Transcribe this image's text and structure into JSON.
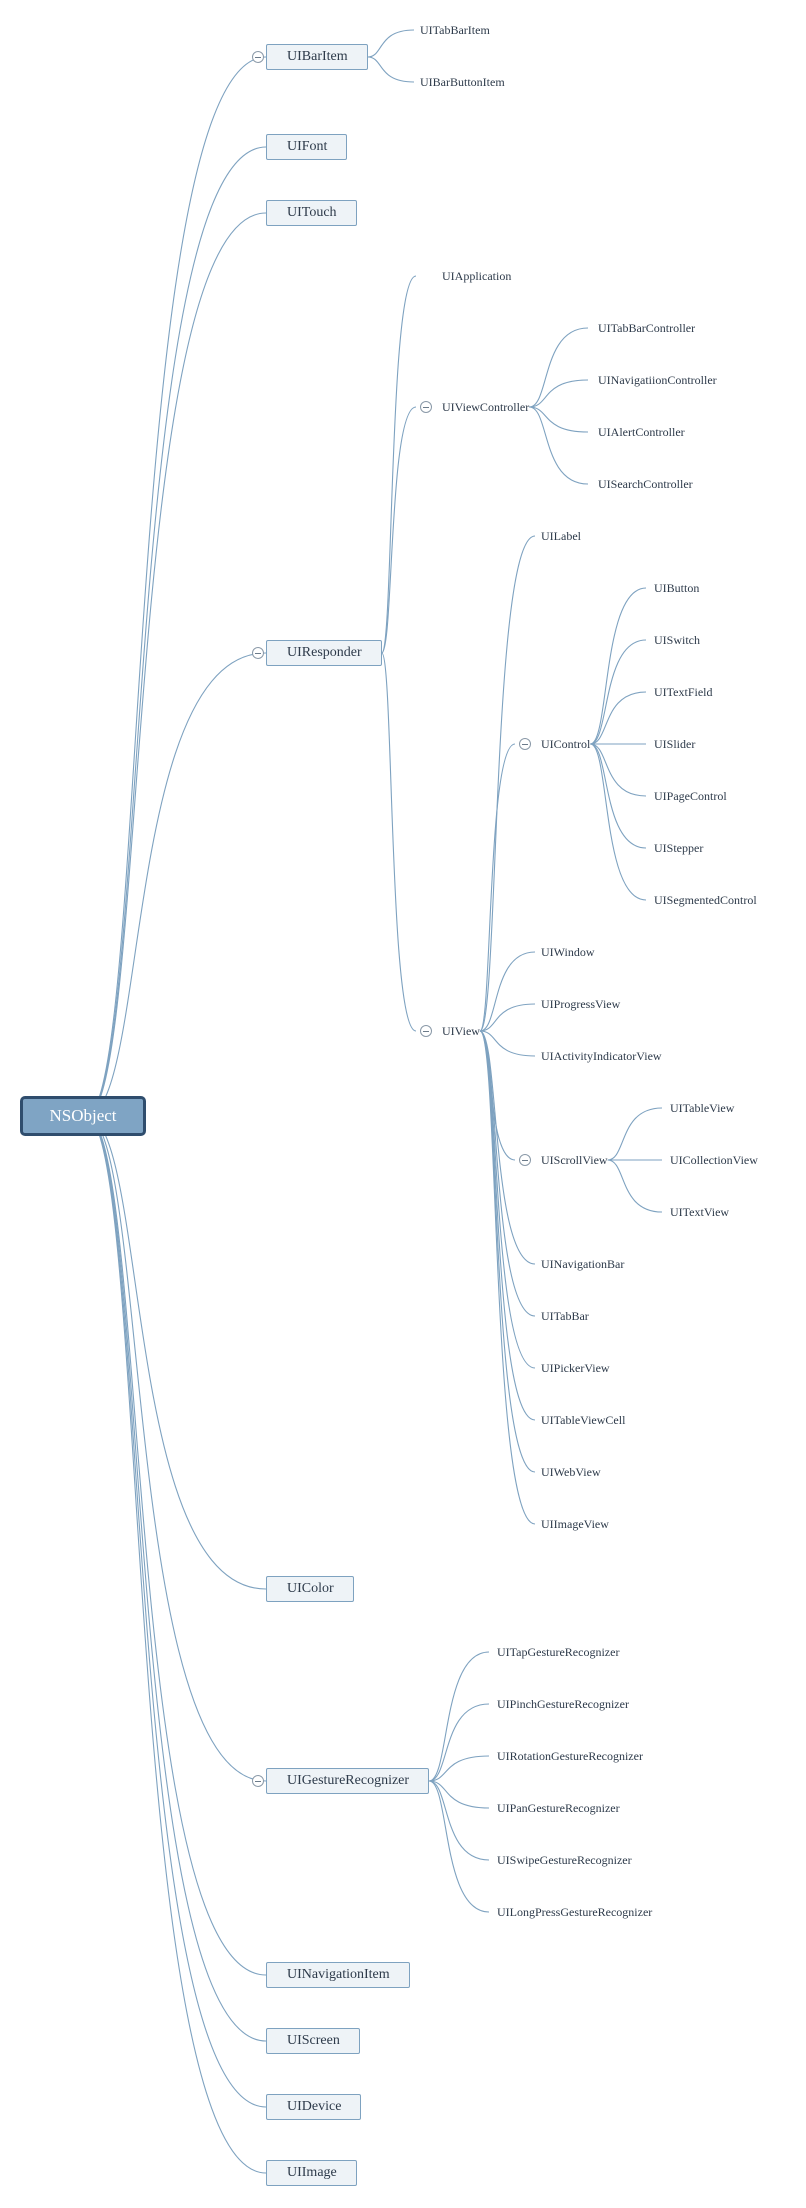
{
  "root": "NSObject",
  "uibaritem": {
    "label": "UIBarItem",
    "children": [
      "UITabBarItem",
      "UIBarButtonItem"
    ]
  },
  "uifont": "UIFont",
  "uitouch": "UITouch",
  "uiresponder": {
    "label": "UIResponder"
  },
  "uiapplication": "UIApplication",
  "uiviewcontroller": {
    "label": "UIViewController",
    "children": [
      "UITabBarController",
      "UINavigatiionController",
      "UIAlertController",
      "UISearchController"
    ]
  },
  "uiview": {
    "label": "UIView"
  },
  "uilabel": "UILabel",
  "uicontrol": {
    "label": "UIControl",
    "children": [
      "UIButton",
      "UISwitch",
      "UITextField",
      "UISlider",
      "UIPageControl",
      "UIStepper",
      "UISegmentedControl"
    ]
  },
  "uiwindow": "UIWindow",
  "uiprogressview": "UIProgressView",
  "uiactivityindicatorview": "UIActivityIndicatorView",
  "uiscrollview": {
    "label": "UIScrollView",
    "children": [
      "UITableView",
      "UICollectionView",
      "UITextView"
    ]
  },
  "uiview_rest": [
    "UINavigationBar",
    "UITabBar",
    "UIPickerView",
    "UITableViewCell",
    "UIWebView",
    "UIImageView"
  ],
  "uicolor": "UIColor",
  "uigesturerecognizer": {
    "label": "UIGestureRecognizer",
    "children": [
      "UITapGestureRecognizer",
      "UIPinchGestureRecognizer",
      "UIRotationGestureRecognizer",
      "UIPanGestureRecognizer",
      "UISwipeGestureRecognizer",
      "UILongPressGestureRecognizer"
    ]
  },
  "uinavigationitem": "UINavigationItem",
  "uiscreen": "UIScreen",
  "uidevice": "UIDevice",
  "uiimage": "UIImage",
  "colors": {
    "link": "#7ea2c0",
    "root_fill": "#7fa4c4",
    "root_border": "#2f4d6d",
    "node_fill": "#eef3f7"
  }
}
